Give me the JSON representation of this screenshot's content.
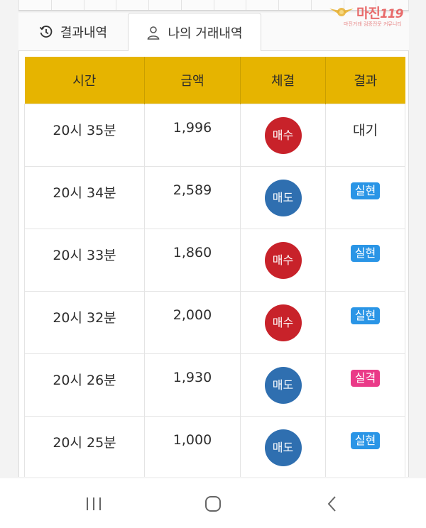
{
  "watermark": {
    "brand": "마진",
    "brand_suffix": "119",
    "tagline": "마진거래 검증전문 커뮤니티"
  },
  "tabs": [
    {
      "label": "결과내역",
      "icon": "history-icon"
    },
    {
      "label": "나의 거래내역",
      "icon": "user-icon"
    }
  ],
  "table": {
    "headers": [
      "시간",
      "금액",
      "체결",
      "결과"
    ],
    "rows": [
      {
        "time": "20시 35분",
        "amount": "1,996",
        "trade": "매수",
        "trade_type": "buy",
        "result": "대기",
        "result_type": "text"
      },
      {
        "time": "20시 34분",
        "amount": "2,589",
        "trade": "매도",
        "trade_type": "sell",
        "result": "실현",
        "result_type": "hit"
      },
      {
        "time": "20시 33분",
        "amount": "1,860",
        "trade": "매수",
        "trade_type": "buy",
        "result": "실현",
        "result_type": "hit"
      },
      {
        "time": "20시 32분",
        "amount": "2,000",
        "trade": "매수",
        "trade_type": "buy",
        "result": "실현",
        "result_type": "hit"
      },
      {
        "time": "20시 26분",
        "amount": "1,930",
        "trade": "매도",
        "trade_type": "sell",
        "result": "실격",
        "result_type": "fail"
      },
      {
        "time": "20시 25분",
        "amount": "1,000",
        "trade": "매도",
        "trade_type": "sell",
        "result": "실현",
        "result_type": "hit"
      }
    ]
  },
  "colors": {
    "header_bg": "#e6b400",
    "buy": "#c8222a",
    "sell": "#2f6fb0",
    "hit": "#2a95e6",
    "fail": "#ea3a88"
  },
  "navbar": {
    "icons": [
      "recent-apps-icon",
      "home-icon",
      "back-icon"
    ]
  }
}
